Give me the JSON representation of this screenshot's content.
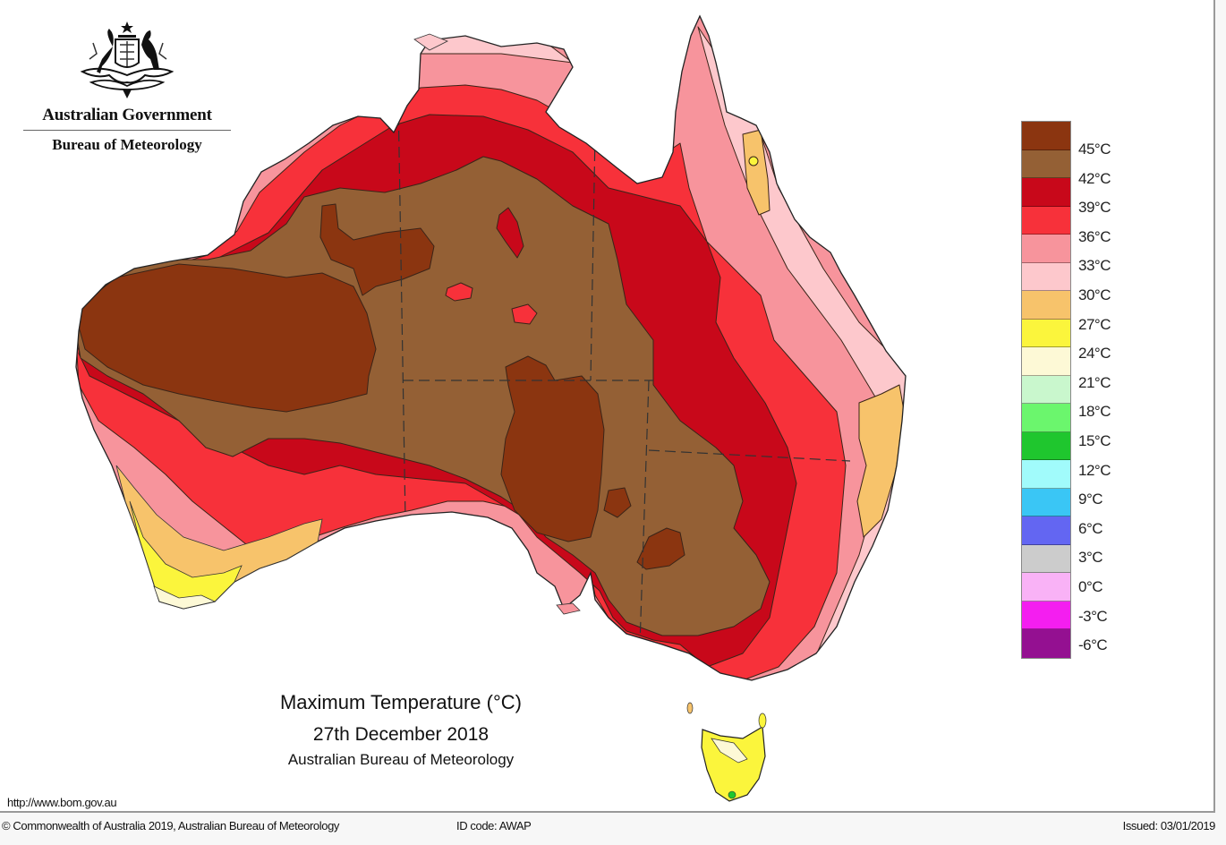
{
  "header": {
    "org_name": "Australian Government",
    "agency_name": "Bureau of Meteorology",
    "emblem": "coat-of-arms-icon"
  },
  "map": {
    "title": "Maximum Temperature (°C)",
    "date": "27th December 2018",
    "source": "Australian Bureau of Meteorology",
    "region": "Australia",
    "zone_colors": {
      "above_45": "#8b3510",
      "42_45": "#946035",
      "39_42": "#c8081a",
      "36_39": "#f7313a",
      "33_36": "#f7949c",
      "30_33": "#fdc8cc",
      "27_30": "#f7c36b",
      "24_27": "#fbf53c",
      "21_24": "#fdf9d6"
    }
  },
  "legend": {
    "unit": "°C",
    "swatches": [
      {
        "color": "#8b3510"
      },
      {
        "color": "#946035"
      },
      {
        "color": "#c8081a"
      },
      {
        "color": "#f7313a"
      },
      {
        "color": "#f7949c"
      },
      {
        "color": "#fdc8cc"
      },
      {
        "color": "#f7c36b"
      },
      {
        "color": "#fbf53c"
      },
      {
        "color": "#fdf9d6"
      },
      {
        "color": "#c9f7cd"
      },
      {
        "color": "#6bf66d"
      },
      {
        "color": "#1fc62e"
      },
      {
        "color": "#a1fbfb"
      },
      {
        "color": "#3ac6f5"
      },
      {
        "color": "#6366f2"
      },
      {
        "color": "#cccccc"
      },
      {
        "color": "#f9b2f6"
      },
      {
        "color": "#f41ef0"
      },
      {
        "color": "#941091"
      }
    ],
    "labels": [
      "45°C",
      "42°C",
      "39°C",
      "36°C",
      "33°C",
      "30°C",
      "27°C",
      "24°C",
      "21°C",
      "18°C",
      "15°C",
      "12°C",
      "9°C",
      "6°C",
      "3°C",
      "0°C",
      "-3°C",
      "-6°C"
    ]
  },
  "footer": {
    "url": "http://www.bom.gov.au",
    "copyright": "© Commonwealth of Australia 2019, Australian Bureau of Meteorology",
    "id_code": "ID code: AWAP",
    "issued": "Issued: 03/01/2019"
  }
}
